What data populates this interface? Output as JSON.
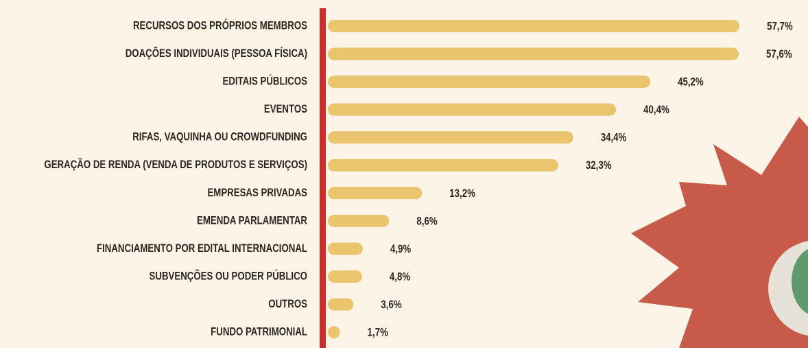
{
  "chart_data": {
    "type": "bar",
    "orientation": "horizontal",
    "categories": [
      "RECURSOS DOS PRÓPRIOS MEMBROS",
      "DOAÇÕES INDIVIDUAIS (PESSOA FÍSICA)",
      "EDITAIS PÚBLICOS",
      "EVENTOS",
      "RIFAS, VAQUINHA OU CROWDFUNDING",
      "GERAÇÃO DE RENDA (VENDA DE PRODUTOS E SERVIÇOS)",
      "EMPRESAS PRIVADAS",
      "EMENDA PARLAMENTAR",
      "FINANCIAMENTO POR EDITAL INTERNACIONAL",
      "SUBVENÇÕES OU PODER PÚBLICO",
      "OUTROS",
      "FUNDO PATRIMONIAL"
    ],
    "values": [
      57.7,
      57.6,
      45.2,
      40.4,
      34.4,
      32.3,
      13.2,
      8.6,
      4.9,
      4.8,
      3.6,
      1.7
    ],
    "value_labels": [
      "57,7%",
      "57,6%",
      "45,2%",
      "40,4%",
      "34,4%",
      "32,3%",
      "13,2%",
      "8,6%",
      "4,9%",
      "4,8%",
      "3,6%",
      "1,7%"
    ],
    "color": "#ebc56d"
  }
}
